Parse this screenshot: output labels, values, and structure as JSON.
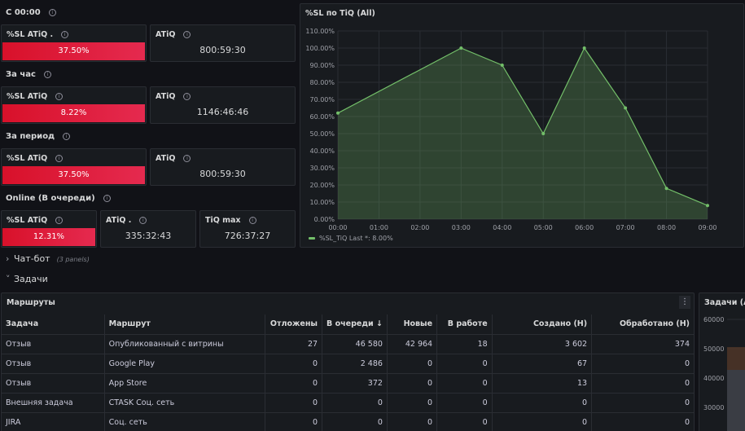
{
  "sections": {
    "s1": "С 00:00",
    "s2": "За час",
    "s3": "За период",
    "s4": "Online (В очереди)"
  },
  "stats": {
    "r1_sl_title": "%SL ATiQ .",
    "r1_sl_value": "37.50%",
    "r1_atiq_title": "ATiQ",
    "r1_atiq_value": "800:59:30",
    "r2_sl_title": "%SL ATiQ",
    "r2_sl_value": "8.22%",
    "r2_atiq_title": "ATiQ",
    "r2_atiq_value": "1146:46:46",
    "r3_sl_title": "%SL ATiQ",
    "r3_sl_value": "37.50%",
    "r3_atiq_title": "ATiQ",
    "r3_atiq_value": "800:59:30",
    "r4_sl_title": "%SL ATiQ",
    "r4_sl_value": "12.31%",
    "r4_atiq_title": "ATiQ .",
    "r4_atiq_value": "335:32:43",
    "r4_tiq_title": "TiQ max",
    "r4_tiq_value": "726:37:27"
  },
  "colors": {
    "stat_red": "#e02f44",
    "series_green": "#73bf69"
  },
  "chart_data": {
    "type": "area",
    "title": "%SL по TiQ (All)",
    "x": [
      "00:00",
      "01:00",
      "02:00",
      "03:00",
      "04:00",
      "05:00",
      "06:00",
      "07:00",
      "08:00",
      "09:00"
    ],
    "yticks": [
      "0.00%",
      "10.00%",
      "20.00%",
      "30.00%",
      "40.00%",
      "50.00%",
      "60.00%",
      "70.00%",
      "80.00%",
      "90.00%",
      "100.00%",
      "110.00%"
    ],
    "ylim": [
      0,
      110
    ],
    "series": [
      {
        "name": "%SL_TiQ",
        "points": [
          [
            "00:00",
            62
          ],
          [
            "03:00",
            100
          ],
          [
            "04:00",
            90
          ],
          [
            "05:00",
            50
          ],
          [
            "06:00",
            100
          ],
          [
            "07:00",
            65
          ],
          [
            "08:00",
            18
          ],
          [
            "09:00",
            8
          ]
        ]
      }
    ],
    "legend_text": "Last *: 8.00%",
    "legend_position": "bottom-left",
    "grid": true
  },
  "rows": {
    "chatbot_title": "Чат-бот",
    "chatbot_sub": "(3 panels)",
    "tasks_title": "Задачи"
  },
  "routes_table": {
    "title": "Маршруты",
    "menu_icon": "⋮",
    "columns": [
      "Задача",
      "Маршрут",
      "Отложены",
      "В очереди ↓",
      "Новые",
      "В работе",
      "Создано (Н)",
      "Обработано (Н)"
    ],
    "rows": [
      [
        "Отзыв",
        "Опубликованный с витрины",
        "27",
        "46 580",
        "42 964",
        "18",
        "3 602",
        "374"
      ],
      [
        "Отзыв",
        "Google Play",
        "0",
        "2 486",
        "0",
        "0",
        "67",
        "0"
      ],
      [
        "Отзыв",
        "App Store",
        "0",
        "372",
        "0",
        "0",
        "13",
        "0"
      ],
      [
        "Внешняя задача",
        "CTASK Соц. сеть",
        "0",
        "0",
        "0",
        "0",
        "0",
        "0"
      ],
      [
        "JIRA",
        "Соц. сеть",
        "0",
        "0",
        "0",
        "0",
        "0",
        "0"
      ]
    ]
  },
  "tasks_panel": {
    "title": "Задачи (All",
    "yticks": [
      "60000",
      "50000",
      "40000",
      "30000"
    ]
  }
}
